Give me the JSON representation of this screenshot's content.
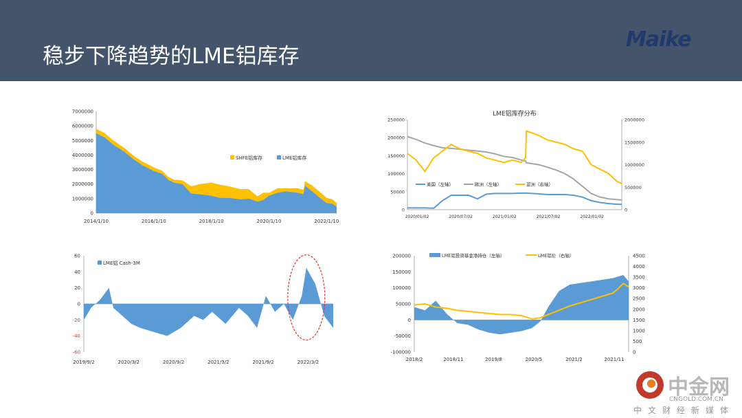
{
  "header": {
    "title": "稳步下降趋势的LME铝库存",
    "logo_text": "Maike"
  },
  "watermark": {
    "name": "中金网",
    "url": "CNGOLD.COM.CN",
    "subtitle": "中文财经新媒体"
  },
  "chart_data": [
    {
      "type": "area",
      "title": "",
      "x_ticks": [
        "2014/1/10",
        "2016/1/10",
        "2018/1/10",
        "2020/1/10",
        "2022/1/10"
      ],
      "y_ticks": [
        "0",
        "1000000",
        "2000000",
        "3000000",
        "4000000",
        "5000000",
        "6000000",
        "7000000"
      ],
      "ylim": [
        0,
        7000000
      ],
      "legend": [
        "SHFE铝库存",
        "LME铝库存"
      ],
      "legend_position": "right",
      "x": [
        2014.0,
        2014.3,
        2014.6,
        2015.0,
        2015.3,
        2015.6,
        2016.0,
        2016.3,
        2016.5,
        2016.7,
        2017.0,
        2017.3,
        2017.6,
        2018.0,
        2018.3,
        2018.6,
        2019.0,
        2019.3,
        2019.6,
        2019.8,
        2020.0,
        2020.3,
        2020.6,
        2021.0,
        2021.2,
        2021.25,
        2021.5,
        2021.8,
        2022.0,
        2022.2,
        2022.35
      ],
      "series": [
        {
          "name": "LME铝库存",
          "color": "#5b9bd5",
          "values": [
            5500000,
            5200000,
            4700000,
            4200000,
            3700000,
            3300000,
            2900000,
            2700000,
            2300000,
            2100000,
            2000000,
            1350000,
            1300000,
            1200000,
            1050000,
            1050000,
            950000,
            1000000,
            800000,
            900000,
            1200000,
            1400000,
            1500000,
            1400000,
            1300000,
            1900000,
            1500000,
            1000000,
            700000,
            650000,
            450000
          ]
        },
        {
          "name": "SHFE铝库存",
          "color": "#ffc000",
          "values": [
            300000,
            300000,
            300000,
            250000,
            250000,
            250000,
            250000,
            200000,
            200000,
            200000,
            250000,
            500000,
            700000,
            900000,
            900000,
            800000,
            700000,
            650000,
            350000,
            500000,
            200000,
            300000,
            200000,
            300000,
            300000,
            300000,
            400000,
            400000,
            350000,
            300000,
            250000
          ]
        }
      ]
    },
    {
      "type": "line",
      "title": "LME铝库存分布",
      "x_ticks": [
        "2020/01/02",
        "2020/07/02",
        "2021/01/02",
        "2021/07/02",
        "2022/01/02"
      ],
      "y_ticks_left": [
        "0",
        "50000",
        "100000",
        "150000",
        "200000",
        "250000"
      ],
      "y_ticks_right": [
        "0",
        "500000",
        "1000000",
        "1500000",
        "2000000"
      ],
      "ylim_left": [
        0,
        250000
      ],
      "ylim_right": [
        0,
        2000000
      ],
      "legend": [
        "美国（左轴）",
        "欧洲（左轴）",
        "亚洲（右轴）"
      ],
      "legend_position": "center",
      "x": [
        2020.0,
        2020.1,
        2020.2,
        2020.3,
        2020.4,
        2020.5,
        2020.6,
        2020.7,
        2020.8,
        2020.9,
        2021.0,
        2021.1,
        2021.2,
        2021.3,
        2021.35,
        2021.36,
        2021.5,
        2021.6,
        2021.7,
        2021.8,
        2021.9,
        2022.0,
        2022.1,
        2022.2,
        2022.3,
        2022.4,
        2022.45
      ],
      "series": [
        {
          "name": "美国（左轴）",
          "axis": "left",
          "color": "#5b9bd5",
          "values": [
            5000,
            5000,
            5000,
            4000,
            25000,
            40000,
            40000,
            40000,
            30000,
            43000,
            45000,
            45000,
            45000,
            46000,
            46000,
            46000,
            44000,
            42000,
            42000,
            42000,
            40000,
            35000,
            25000,
            20000,
            17000,
            15000,
            15000
          ]
        },
        {
          "name": "欧洲（左轴）",
          "axis": "left",
          "color": "#a5a5a5",
          "values": [
            203000,
            195000,
            185000,
            178000,
            172000,
            170000,
            168000,
            165000,
            163000,
            160000,
            155000,
            148000,
            145000,
            138000,
            135000,
            130000,
            125000,
            118000,
            110000,
            100000,
            85000,
            65000,
            45000,
            35000,
            30000,
            28000,
            27000
          ]
        },
        {
          "name": "亚洲（右轴）",
          "axis": "right",
          "color": "#ffc000",
          "values": [
            1250000,
            1100000,
            850000,
            1150000,
            1300000,
            1450000,
            1350000,
            1300000,
            1250000,
            1150000,
            1100000,
            1050000,
            1100000,
            1050000,
            1150000,
            1750000,
            1650000,
            1550000,
            1500000,
            1450000,
            1350000,
            1300000,
            1000000,
            900000,
            800000,
            620000,
            580000
          ]
        }
      ]
    },
    {
      "type": "area",
      "title": "",
      "x_ticks": [
        "2019/9/2",
        "2020/3/2",
        "2020/9/2",
        "2021/3/2",
        "2021/9/2",
        "2022/3/2"
      ],
      "y_ticks": [
        "-60",
        "-40",
        "-20",
        "0",
        "20",
        "40",
        "60"
      ],
      "ylim": [
        -60,
        60
      ],
      "legend": [
        "LME铝 Cash-3M"
      ],
      "legend_position": "top-left",
      "annotation": "dashed red ellipse",
      "x": [
        2019.67,
        2019.75,
        2019.85,
        2019.95,
        2020.0,
        2020.1,
        2020.2,
        2020.3,
        2020.45,
        2020.6,
        2020.75,
        2020.9,
        2021.0,
        2021.1,
        2021.25,
        2021.4,
        2021.5,
        2021.6,
        2021.7,
        2021.8,
        2021.9,
        2022.0,
        2022.1,
        2022.15,
        2022.25,
        2022.35,
        2022.45
      ],
      "series": [
        {
          "name": "LME铝 Cash-3M",
          "color": "#5b9bd5",
          "values": [
            -20,
            -5,
            5,
            20,
            -5,
            -15,
            -25,
            -30,
            -35,
            -40,
            -30,
            -15,
            -20,
            -10,
            -25,
            -5,
            -15,
            -30,
            10,
            -10,
            0,
            -20,
            10,
            45,
            25,
            -15,
            -30
          ]
        }
      ]
    },
    {
      "type": "bar",
      "title": "",
      "x_ticks": [
        "2018/2",
        "2018/11",
        "2019/8",
        "2020/5",
        "2021/2",
        "2021/11"
      ],
      "y_ticks_left": [
        "-100000",
        "-50000",
        "0",
        "50000",
        "100000",
        "150000",
        "200000"
      ],
      "y_ticks_right": [
        "0",
        "500",
        "1000",
        "1500",
        "2000",
        "2500",
        "3000",
        "3500",
        "4000",
        "4500"
      ],
      "ylim_left": [
        -100000,
        200000
      ],
      "ylim_right": [
        0,
        4500
      ],
      "legend": [
        "LME铝投资基金净持仓（左轴）",
        "LME铝价（右轴）"
      ],
      "legend_position": "top",
      "x": [
        2018.1,
        2018.3,
        2018.5,
        2018.7,
        2018.9,
        2019.1,
        2019.3,
        2019.5,
        2019.7,
        2019.9,
        2020.1,
        2020.3,
        2020.45,
        2020.6,
        2020.8,
        2021.0,
        2021.2,
        2021.4,
        2021.6,
        2021.8,
        2021.9,
        2022.0,
        2022.1
      ],
      "series": [
        {
          "name": "LME铝投资基金净持仓（左轴）",
          "axis": "left",
          "color": "#5b9bd5",
          "values": [
            40000,
            30000,
            60000,
            20000,
            -10000,
            -15000,
            -30000,
            -40000,
            -45000,
            -40000,
            -35000,
            -25000,
            -5000,
            40000,
            90000,
            110000,
            115000,
            120000,
            125000,
            130000,
            135000,
            140000,
            120000
          ]
        },
        {
          "name": "LME铝价（右轴）",
          "axis": "right",
          "color": "#ffc000",
          "values": [
            2200,
            2250,
            2100,
            2050,
            1950,
            1900,
            1850,
            1800,
            1750,
            1750,
            1700,
            1550,
            1600,
            1750,
            1950,
            2150,
            2300,
            2450,
            2600,
            2750,
            2950,
            3200,
            3050
          ]
        }
      ]
    }
  ]
}
